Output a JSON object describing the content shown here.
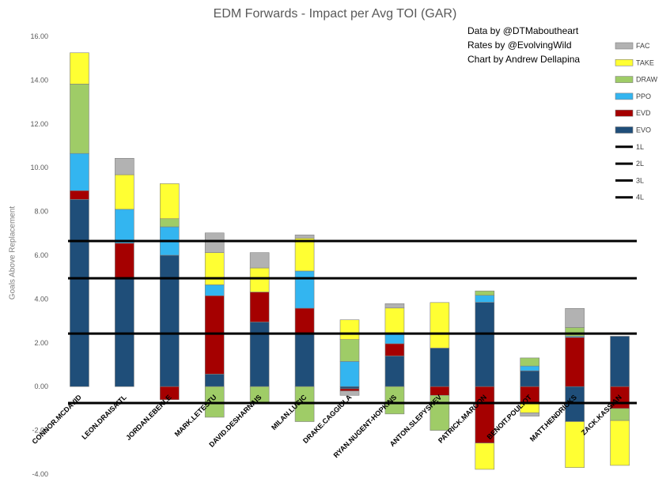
{
  "chart_data": {
    "type": "bar",
    "stacked": true,
    "title": "EDM Forwards - Impact per Avg TOI (GAR)",
    "xlabel": "",
    "ylabel": "Goals Above Replacement",
    "ylim": [
      -4,
      16
    ],
    "yticks": [
      "16.00",
      "14.00",
      "12.00",
      "10.00",
      "8.00",
      "6.00",
      "4.00",
      "2.00",
      "0.00",
      "-2.00",
      "-4.00"
    ],
    "ytick_values": [
      16,
      14,
      12,
      10,
      8,
      6,
      4,
      2,
      0,
      -2,
      -4
    ],
    "grid": false,
    "legend_position": "top-right",
    "categories": [
      "CONNOR.MCDAVID",
      "LEON.DRAISAITL",
      "JORDAN.EBERLE",
      "MARK.LETESTU",
      "DAVID.DESHARNAIS",
      "MILAN.LUCIC",
      "DRAKE.CAGGIULA",
      "RYAN.NUGENT-HOPKINS",
      "ANTON.SLEPYSHEV",
      "PATRICK.MAROON",
      "BENOIT.POULIOT",
      "MATT.HENDRICKS",
      "ZACK.KASSIAN"
    ],
    "series": [
      {
        "name": "EVO",
        "color": "#1f4e79",
        "values": [
          8.55,
          4.95,
          6.0,
          0.57,
          2.95,
          2.42,
          -0.1,
          1.4,
          1.76,
          3.85,
          0.72,
          -1.6,
          2.3
        ]
      },
      {
        "name": "EVD",
        "color": "#a50000",
        "values": [
          0.4,
          1.6,
          -0.6,
          3.58,
          1.37,
          1.16,
          -0.1,
          0.56,
          -0.4,
          -2.58,
          -0.75,
          2.25,
          -1.0
        ]
      },
      {
        "name": "PPO",
        "color": "#33b5f0",
        "values": [
          1.7,
          1.55,
          1.3,
          0.5,
          0.0,
          1.7,
          1.15,
          0.43,
          0.0,
          0.32,
          0.22,
          0.05,
          0.0
        ]
      },
      {
        "name": "DRAW",
        "color": "#9fcc67",
        "values": [
          3.17,
          0.0,
          0.37,
          -1.4,
          -0.76,
          -1.6,
          1.0,
          -1.25,
          -1.6,
          0.2,
          0.37,
          0.4,
          -0.55
        ]
      },
      {
        "name": "TAKE",
        "color": "#ffff33",
        "values": [
          1.43,
          1.58,
          1.6,
          1.47,
          1.1,
          1.5,
          0.9,
          1.2,
          2.08,
          -1.2,
          -0.45,
          -2.1,
          -2.05
        ]
      },
      {
        "name": "FAC",
        "color": "#b2b2b2",
        "values": [
          0.0,
          0.75,
          0.0,
          0.9,
          0.7,
          0.15,
          -0.2,
          0.2,
          0.0,
          0.0,
          -0.15,
          0.87,
          0.0
        ]
      }
    ],
    "reference_lines": [
      {
        "name": "1L",
        "value": 6.65,
        "color": "#000000"
      },
      {
        "name": "2L",
        "value": 4.95,
        "color": "#000000"
      },
      {
        "name": "3L",
        "value": 2.42,
        "color": "#000000"
      },
      {
        "name": "4L",
        "value": -0.75,
        "color": "#000000"
      }
    ],
    "legend_order": [
      "FAC",
      "TAKE",
      "DRAW",
      "PPO",
      "EVD",
      "EVO",
      "1L",
      "2L",
      "3L",
      "4L"
    ],
    "credits": [
      "Data by @DTMaboutheart",
      "Rates by @EvolvingWild",
      "Chart by Andrew Dellapina"
    ]
  }
}
